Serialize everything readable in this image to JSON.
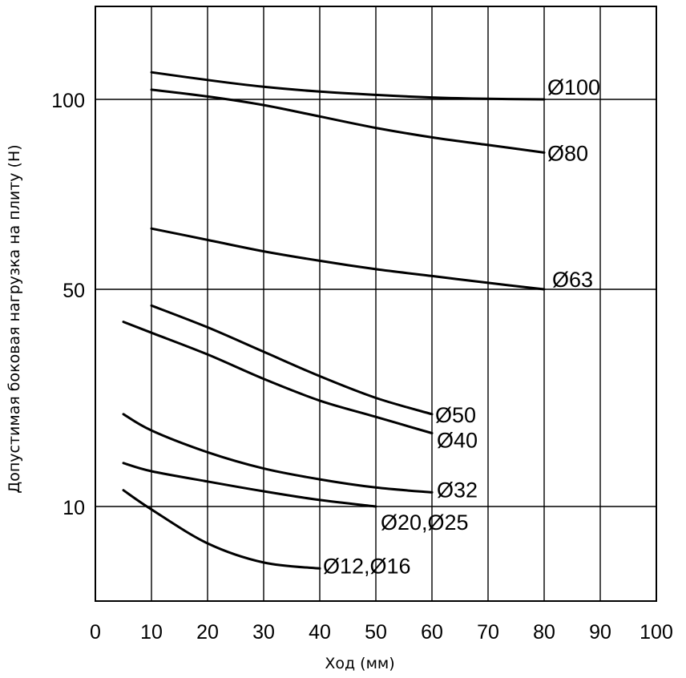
{
  "chart_data": {
    "type": "line",
    "title": "",
    "xlabel": "Ход (мм)",
    "ylabel": "Допустимая боковая нагрузка на плиту (Н)",
    "xlim": [
      0,
      100
    ],
    "ylim": [
      5,
      148
    ],
    "y_scale": "nonlinear",
    "x_ticks": [
      "0",
      "10",
      "20",
      "30",
      "40",
      "50",
      "60",
      "70",
      "80",
      "90",
      "100"
    ],
    "y_ticks": [
      "10",
      "50",
      "100"
    ],
    "grid": true,
    "series": [
      {
        "name": "Ø100",
        "x": [
          10,
          20,
          30,
          40,
          50,
          60,
          70,
          80
        ],
        "y": [
          114,
          110,
          106.5,
          104,
          102.3,
          101,
          100.3,
          100
        ]
      },
      {
        "name": "Ø80",
        "x": [
          10,
          20,
          30,
          40,
          50,
          60,
          70,
          80
        ],
        "y": [
          105,
          101.5,
          98.5,
          95.5,
          92.5,
          90,
          88,
          86
        ]
      },
      {
        "name": "Ø63",
        "x": [
          10,
          20,
          30,
          40,
          50,
          60,
          70,
          80
        ],
        "y": [
          66,
          63,
          60,
          57.5,
          55.3,
          53.5,
          51.7,
          50
        ]
      },
      {
        "name": "Ø50",
        "x": [
          10,
          20,
          30,
          40,
          50,
          60
        ],
        "y": [
          47,
          43,
          38.5,
          34,
          30,
          27
        ]
      },
      {
        "name": "Ø40",
        "x": [
          5,
          10,
          20,
          30,
          40,
          50,
          60
        ],
        "y": [
          44,
          42,
          38,
          33.5,
          29.5,
          26.5,
          23.5
        ]
      },
      {
        "name": "Ø32",
        "x": [
          5,
          10,
          20,
          30,
          40,
          50,
          60
        ],
        "y": [
          27,
          24,
          20,
          17,
          15,
          13.5,
          12.6
        ]
      },
      {
        "name": "Ø20,Ø25",
        "x": [
          5,
          10,
          20,
          30,
          40,
          50
        ],
        "y": [
          18,
          16.5,
          14.6,
          12.8,
          11.2,
          10
        ]
      },
      {
        "name": "Ø12,Ø16",
        "x": [
          5,
          10,
          20,
          30,
          40
        ],
        "y": [
          13,
          9.8,
          7.5,
          6.2,
          5.8
        ]
      }
    ]
  }
}
